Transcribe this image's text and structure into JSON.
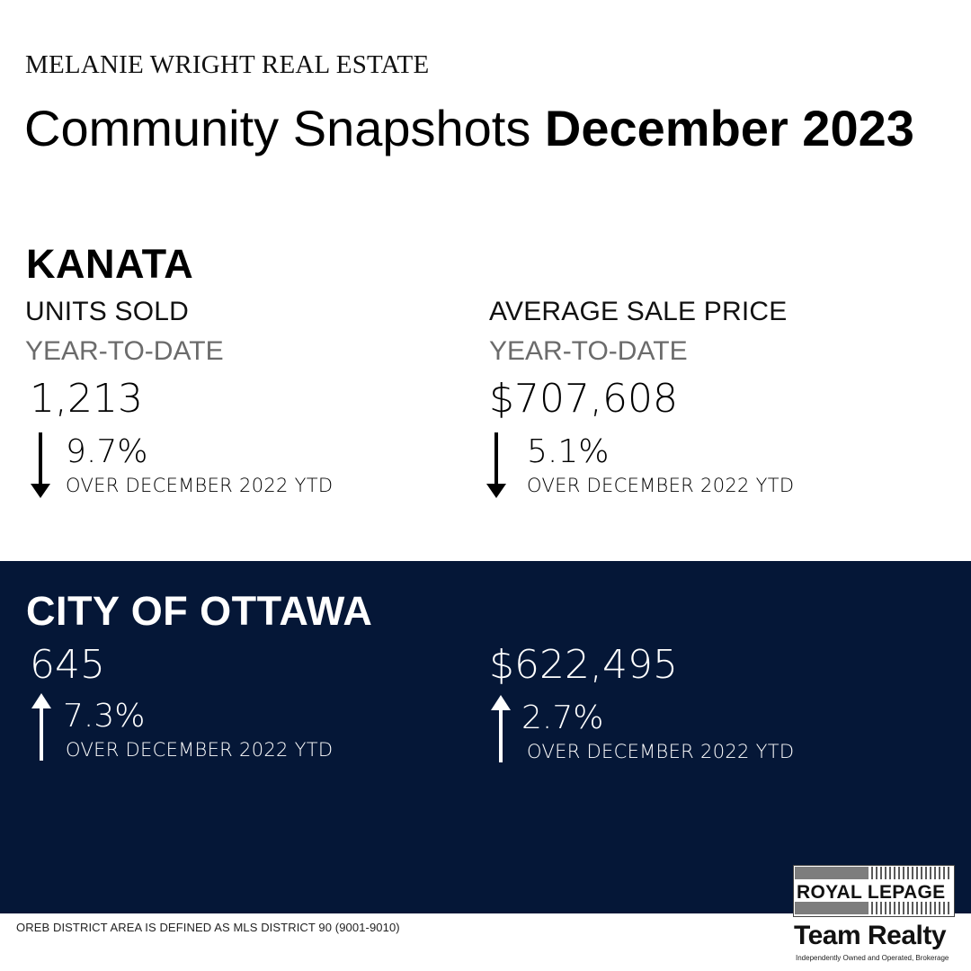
{
  "header": {
    "brand": "MELANIE WRIGHT REAL ESTATE",
    "title_light": "Community Snapshots ",
    "title_bold": "December 2023"
  },
  "kanata": {
    "title": "KANATA",
    "units": {
      "label": "UNITS SOLD",
      "period": "YEAR-TO-DATE",
      "value": "1,213",
      "change": "9.7%",
      "direction": "down",
      "comparison": "OVER DECEMBER 2022 YTD"
    },
    "price": {
      "label": "AVERAGE SALE PRICE",
      "period": "YEAR-TO-DATE",
      "value": "$707,608",
      "change": "5.1%",
      "direction": "down",
      "comparison": "OVER DECEMBER 2022 YTD"
    }
  },
  "ottawa": {
    "title": "CITY OF OTTAWA",
    "units": {
      "value": "645",
      "change": "7.3%",
      "direction": "up",
      "comparison": "OVER DECEMBER 2022 YTD"
    },
    "price": {
      "value": "$622,495",
      "change": "2.7%",
      "direction": "up",
      "comparison": "OVER DECEMBER 2022 YTD"
    }
  },
  "footer": {
    "note": "OREB DISTRICT AREA IS DEFINED AS MLS DISTRICT 90 (9001-9010)"
  },
  "logo": {
    "name": "ROYAL LEPAGE",
    "team": "Team Realty",
    "tagline": "Independently Owned and Operated, Brokerage"
  },
  "colors": {
    "panel": "#051737",
    "text": "#000000",
    "muted": "#6b6b6b"
  }
}
